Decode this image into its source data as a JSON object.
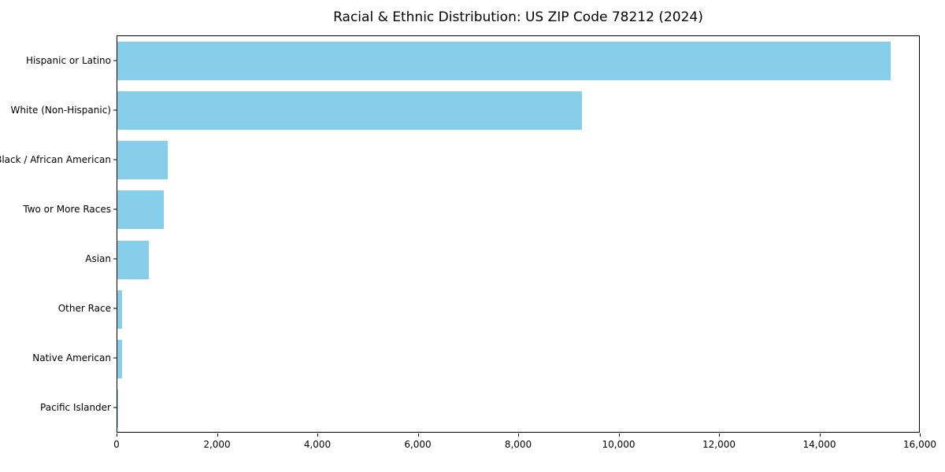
{
  "chart_data": {
    "type": "bar",
    "orientation": "horizontal",
    "title": "Racial & Ethnic Distribution: US ZIP Code 78212 (2024)",
    "categories": [
      "Hispanic or Latino",
      "White (Non-Hispanic)",
      "Black / African American",
      "Two or More Races",
      "Asian",
      "Other Race",
      "Native American",
      "Pacific Islander"
    ],
    "values": [
      15400,
      9250,
      1000,
      920,
      620,
      100,
      90,
      15
    ],
    "title_text": "",
    "xlabel": "",
    "ylabel": "",
    "xlim": [
      0,
      16000
    ],
    "xticks": [
      0,
      2000,
      4000,
      6000,
      8000,
      10000,
      12000,
      14000,
      16000
    ],
    "bar_color": "#87CEEB",
    "grid": false,
    "legend": false,
    "frame": true
  }
}
